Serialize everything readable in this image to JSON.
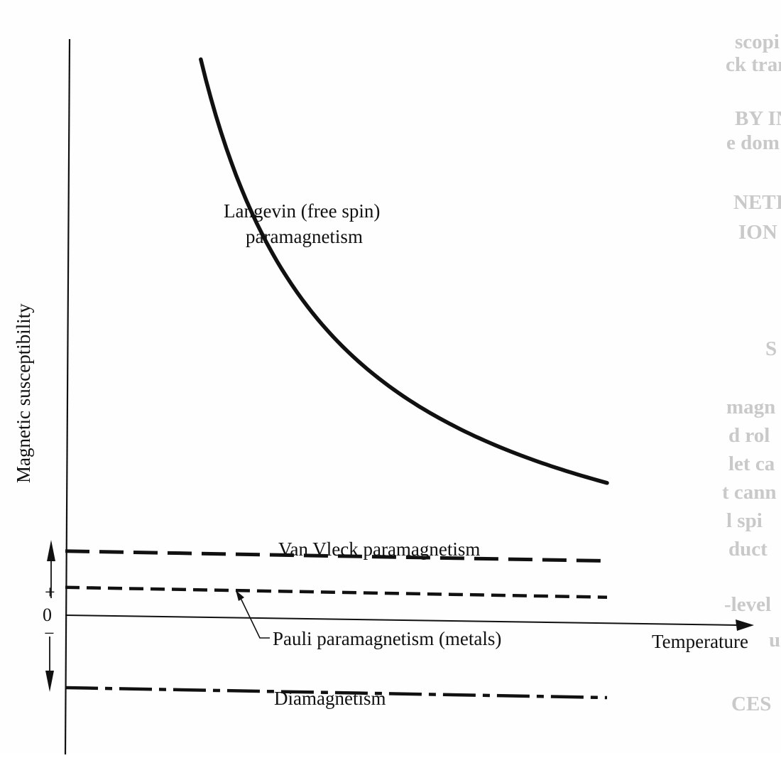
{
  "chart_data": {
    "type": "line",
    "title": "",
    "xlabel": "Temperature",
    "ylabel": "Magnetic susceptibility",
    "y_ticks": {
      "plus": "+",
      "zero": "0",
      "minus": "−"
    },
    "series": [
      {
        "key": "langevin",
        "name": "Langevin (free spin)\nparamagnetism",
        "name_lines": [
          "Langevin (free spin)",
          "paramagnetism"
        ],
        "style": "solid",
        "trend": "curie-law decreasing with temperature",
        "x": [
          0.25,
          0.3,
          0.35,
          0.4,
          0.45,
          0.5,
          0.55,
          0.6,
          0.65,
          0.7,
          0.75,
          0.8,
          0.85,
          0.9,
          0.95,
          1.0
        ],
        "y": [
          10.0,
          8.33,
          7.14,
          6.25,
          5.56,
          5.0,
          4.55,
          4.17,
          3.85,
          3.57,
          3.33,
          3.13,
          2.94,
          2.78,
          2.63,
          2.5
        ]
      },
      {
        "key": "vanvleck",
        "name": "Van Vleck paramagnetism",
        "style": "long-dash",
        "x": [
          0.0,
          1.0
        ],
        "y": [
          1.15,
          1.1
        ]
      },
      {
        "key": "pauli",
        "name": "Pauli paramagnetism (metals)",
        "style": "short-dash",
        "x": [
          0.0,
          1.0
        ],
        "y": [
          0.5,
          0.45
        ]
      },
      {
        "key": "diamagnetism",
        "name": "Diamagnetism",
        "style": "dash-dot",
        "x": [
          0.0,
          1.0
        ],
        "y": [
          -1.3,
          -1.35
        ]
      }
    ],
    "grid": false,
    "legend": "inline labels",
    "colors": {
      "ink": "#111111",
      "paper": "#fefefe",
      "bleed_through": "#c9c9c9"
    }
  },
  "bleed_through_text": [
    "scopi",
    "ck tran",
    "BY IN",
    "e dom",
    "NETI",
    "ION",
    "S",
    "magn",
    "d rol",
    "let ca",
    "t cann",
    "l spi",
    "duct",
    "-level",
    "u",
    "CES"
  ]
}
